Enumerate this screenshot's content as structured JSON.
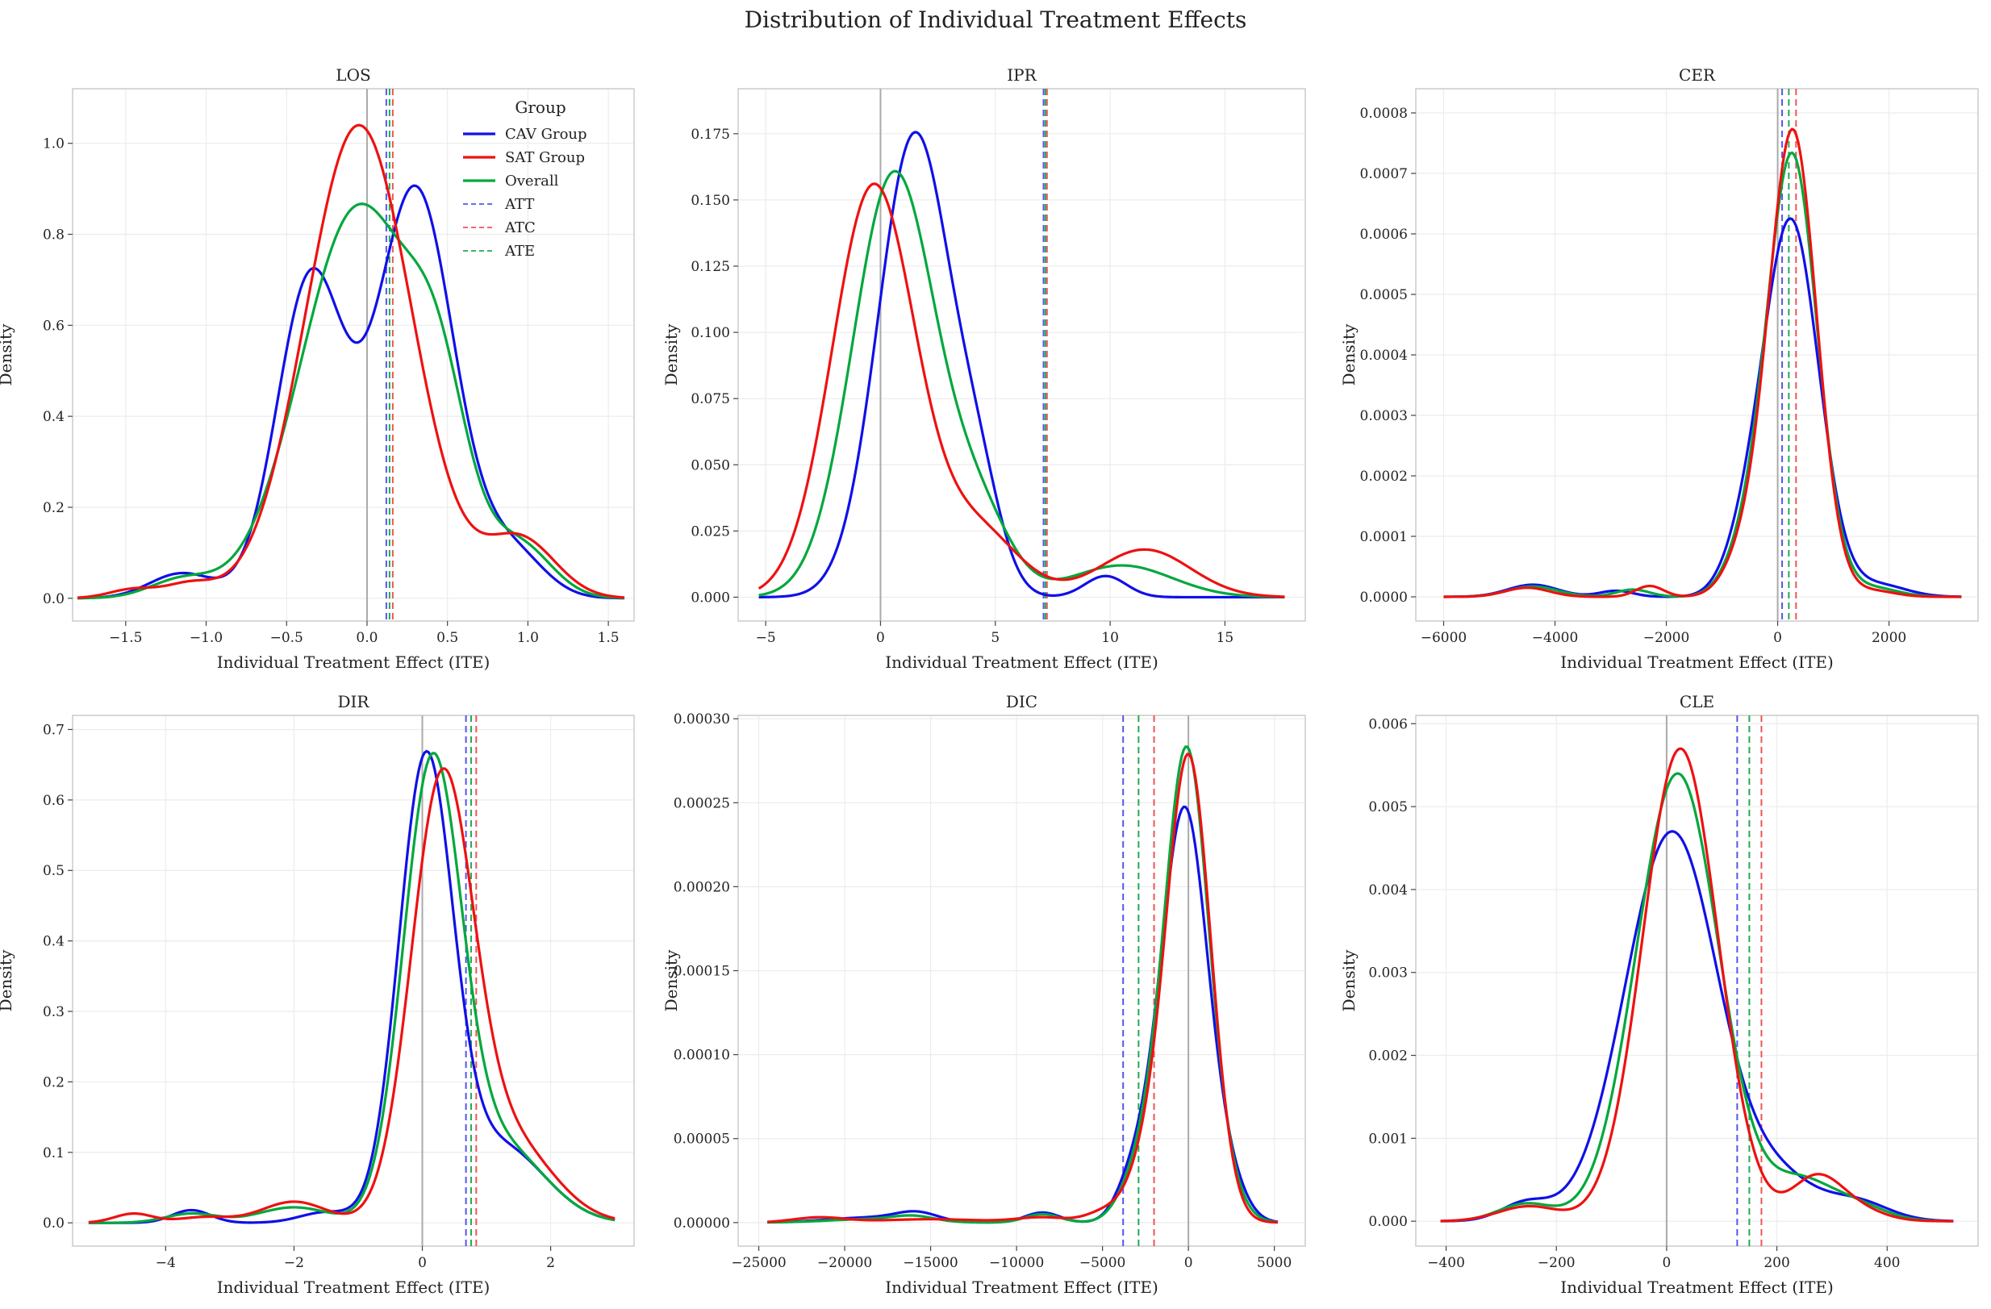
{
  "figure": {
    "title": "Distribution of Individual Treatment Effects"
  },
  "legend": {
    "title": "Group",
    "entries": [
      {
        "label": "CAV Group",
        "color": "#1010e8",
        "style": "solid"
      },
      {
        "label": "SAT Group",
        "color": "#ee1111",
        "style": "solid"
      },
      {
        "label": "Overall",
        "color": "#00a83c",
        "style": "solid"
      },
      {
        "label": "ATT",
        "color": "#5555ee",
        "style": "dashed"
      },
      {
        "label": "ATC",
        "color": "#ee5555",
        "style": "dashed"
      },
      {
        "label": "ATE",
        "color": "#22aa55",
        "style": "dashed"
      }
    ]
  },
  "colors": {
    "cav": "#1010e8",
    "sat": "#ee1111",
    "overall": "#00a83c",
    "att": "#5555ee",
    "atc": "#ee5555",
    "ate": "#22aa55",
    "zero": "#aaaaaa"
  },
  "chart_data": [
    {
      "type": "line",
      "title": "LOS",
      "xlabel": "Individual Treatment Effect (ITE)",
      "ylabel": "Density",
      "xlim": [
        -1.83,
        1.66
      ],
      "ylim": [
        -0.05,
        1.12
      ],
      "xticks": [
        -1.5,
        -1.0,
        -0.5,
        0.0,
        0.5,
        1.0,
        1.5
      ],
      "xtick_labels": [
        "−1.5",
        "−1.0",
        "−0.5",
        "0.0",
        "0.5",
        "1.0",
        "1.5"
      ],
      "yticks": [
        0.0,
        0.2,
        0.4,
        0.6,
        0.8,
        1.0
      ],
      "ytick_labels": [
        "0.0",
        "0.2",
        "0.4",
        "0.6",
        "0.8",
        "1.0"
      ],
      "x_min": -1.8,
      "x_max": 1.6,
      "ate_lines": {
        "ATT": 0.12,
        "ATC": 0.16,
        "ATE": 0.14
      },
      "show_legend": true,
      "series": [
        {
          "name": "CAV Group",
          "peaks": [
            [
              -1.15,
              0.055,
              0.2
            ],
            [
              -0.35,
              0.7,
              0.21
            ],
            [
              0.3,
              0.9,
              0.24
            ],
            [
              0.9,
              0.1,
              0.2
            ]
          ]
        },
        {
          "name": "SAT Group",
          "peaks": [
            [
              -1.45,
              0.02,
              0.15
            ],
            [
              -1.1,
              0.03,
              0.15
            ],
            [
              -0.05,
              1.04,
              0.33
            ],
            [
              0.95,
              0.13,
              0.22
            ]
          ]
        },
        {
          "name": "Overall",
          "peaks": [
            [
              -1.15,
              0.04,
              0.2
            ],
            [
              -0.05,
              0.86,
              0.36
            ],
            [
              0.45,
              0.29,
              0.18
            ],
            [
              0.95,
              0.11,
              0.2
            ]
          ]
        }
      ]
    },
    {
      "type": "line",
      "title": "IPR",
      "xlabel": "Individual Treatment Effect (ITE)",
      "ylabel": "Density",
      "xlim": [
        -6.2,
        18.5
      ],
      "ylim": [
        -0.009,
        0.192
      ],
      "xticks": [
        -5,
        0,
        5,
        10,
        15
      ],
      "xtick_labels": [
        "−5",
        "0",
        "5",
        "10",
        "15"
      ],
      "yticks": [
        0.0,
        0.025,
        0.05,
        0.075,
        0.1,
        0.125,
        0.15,
        0.175
      ],
      "ytick_labels": [
        "0.000",
        "0.025",
        "0.050",
        "0.075",
        "0.100",
        "0.125",
        "0.150",
        "0.175"
      ],
      "x_min": -5.3,
      "x_max": 17.6,
      "ate_lines": {
        "ATT": 7.1,
        "ATC": 7.25,
        "ATE": 7.18
      },
      "show_legend": false,
      "series": [
        {
          "name": "CAV Group",
          "peaks": [
            [
              1.5,
              0.175,
              1.6
            ],
            [
              4.3,
              0.03,
              1.0
            ],
            [
              9.8,
              0.008,
              0.9
            ]
          ]
        },
        {
          "name": "SAT Group",
          "peaks": [
            [
              -0.3,
              0.155,
              1.8
            ],
            [
              4.2,
              0.025,
              1.8
            ],
            [
              11.5,
              0.018,
              2.0
            ]
          ]
        },
        {
          "name": "Overall",
          "peaks": [
            [
              0.6,
              0.16,
              1.8
            ],
            [
              4.3,
              0.028,
              1.4
            ],
            [
              10.5,
              0.012,
              2.2
            ]
          ]
        }
      ]
    },
    {
      "type": "line",
      "title": "CER",
      "xlabel": "Individual Treatment Effect (ITE)",
      "ylabel": "Density",
      "xlim": [
        -6500,
        3600
      ],
      "ylim": [
        -4e-05,
        0.00084
      ],
      "xticks": [
        -6000,
        -4000,
        -2000,
        0,
        2000
      ],
      "xtick_labels": [
        "−6000",
        "−4000",
        "−2000",
        "0",
        "2000"
      ],
      "yticks": [
        0.0,
        0.0001,
        0.0002,
        0.0003,
        0.0004,
        0.0005,
        0.0006,
        0.0007,
        0.0008
      ],
      "ytick_labels": [
        "0.0000",
        "0.0001",
        "0.0002",
        "0.0003",
        "0.0004",
        "0.0005",
        "0.0006",
        "0.0007",
        "0.0008"
      ],
      "x_min": -6000,
      "x_max": 3300,
      "ate_lines": {
        "ATT": 80,
        "ATC": 330,
        "ATE": 200
      },
      "show_legend": false,
      "series": [
        {
          "name": "CAV Group",
          "peaks": [
            [
              -4400,
              2e-05,
              450
            ],
            [
              -2900,
              1e-05,
              300
            ],
            [
              -600,
              6e-05,
              380
            ],
            [
              240,
              0.00062,
              500
            ],
            [
              1800,
              2e-05,
              500
            ]
          ]
        },
        {
          "name": "SAT Group",
          "peaks": [
            [
              -4500,
              1.5e-05,
              400
            ],
            [
              -2300,
              1.8e-05,
              250
            ],
            [
              -600,
              6e-05,
              360
            ],
            [
              270,
              0.00077,
              430
            ],
            [
              1700,
              1e-05,
              400
            ]
          ]
        },
        {
          "name": "Overall",
          "peaks": [
            [
              -4400,
              1.7e-05,
              450
            ],
            [
              -2600,
              1.2e-05,
              300
            ],
            [
              -600,
              6e-05,
              370
            ],
            [
              260,
              0.00073,
              450
            ],
            [
              1700,
              1.5e-05,
              450
            ]
          ]
        }
      ]
    },
    {
      "type": "line",
      "title": "DIR",
      "xlabel": "Individual Treatment Effect (ITE)",
      "ylabel": "Density",
      "xlim": [
        -5.45,
        3.3
      ],
      "ylim": [
        -0.033,
        0.72
      ],
      "xticks": [
        -4,
        -2,
        0,
        2
      ],
      "xtick_labels": [
        "−4",
        "−2",
        "0",
        "2"
      ],
      "yticks": [
        0.0,
        0.1,
        0.2,
        0.3,
        0.4,
        0.5,
        0.6,
        0.7
      ],
      "ytick_labels": [
        "0.0",
        "0.1",
        "0.2",
        "0.3",
        "0.4",
        "0.5",
        "0.6",
        "0.7"
      ],
      "x_min": -5.2,
      "x_max": 3.0,
      "ate_lines": {
        "ATT": 0.68,
        "ATC": 0.84,
        "ATE": 0.76
      },
      "show_legend": false,
      "series": [
        {
          "name": "CAV Group",
          "peaks": [
            [
              -3.6,
              0.018,
              0.3
            ],
            [
              -1.5,
              0.015,
              0.4
            ],
            [
              0.05,
              0.64,
              0.42
            ],
            [
              1.2,
              0.11,
              0.7
            ]
          ]
        },
        {
          "name": "SAT Group",
          "peaks": [
            [
              -4.5,
              0.013,
              0.3
            ],
            [
              -3.4,
              0.008,
              0.4
            ],
            [
              -2.0,
              0.03,
              0.5
            ],
            [
              0.3,
              0.6,
              0.48
            ],
            [
              1.3,
              0.12,
              0.7
            ]
          ]
        },
        {
          "name": "Overall",
          "peaks": [
            [
              -3.6,
              0.013,
              0.4
            ],
            [
              -2.0,
              0.022,
              0.55
            ],
            [
              0.15,
              0.63,
              0.45
            ],
            [
              1.2,
              0.11,
              0.7
            ]
          ]
        }
      ]
    },
    {
      "type": "line",
      "title": "DIC",
      "xlabel": "Individual Treatment Effect (ITE)",
      "ylabel": "Density",
      "xlim": [
        -26200,
        6800
      ],
      "ylim": [
        -1.4e-05,
        0.000302
      ],
      "xticks": [
        -25000,
        -20000,
        -15000,
        -10000,
        -5000,
        0,
        5000
      ],
      "xtick_labels": [
        "−25000",
        "−20000",
        "−15000",
        "−10000",
        "−5000",
        "0",
        "5000"
      ],
      "yticks": [
        0.0,
        5e-05,
        0.0001,
        0.00015,
        0.0002,
        0.00025,
        0.0003
      ],
      "ytick_labels": [
        "0.00000",
        "0.00005",
        "0.00010",
        "0.00015",
        "0.00020",
        "0.00025",
        "0.00030"
      ],
      "x_min": -24500,
      "x_max": 5200,
      "ate_lines": {
        "ATT": -3800,
        "ATC": -2000,
        "ATE": -2900
      },
      "show_legend": false,
      "series": [
        {
          "name": "CAV Group",
          "peaks": [
            [
              -18500,
              3e-06,
              2500
            ],
            [
              -15800,
              5e-06,
              1200
            ],
            [
              -8500,
              6e-06,
              1000
            ],
            [
              -3500,
              1.2e-05,
              900
            ],
            [
              -2500,
              2e-05,
              1100
            ],
            [
              -200,
              0.000245,
              1350
            ],
            [
              2500,
              1.5e-05,
              1000
            ]
          ]
        },
        {
          "name": "SAT Group",
          "peaks": [
            [
              -21500,
              3e-06,
              1500
            ],
            [
              -15000,
              2e-06,
              3000
            ],
            [
              -8500,
              3e-06,
              1500
            ],
            [
              -4500,
              8e-06,
              1200
            ],
            [
              -2500,
              2.5e-05,
              1000
            ],
            [
              0,
              0.000278,
              1300
            ]
          ]
        },
        {
          "name": "Overall",
          "peaks": [
            [
              -18500,
              2e-06,
              2500
            ],
            [
              -16000,
              3e-06,
              1200
            ],
            [
              -8500,
              5e-06,
              1000
            ],
            [
              -3500,
              1e-05,
              1000
            ],
            [
              -2500,
              2.2e-05,
              1000
            ],
            [
              -100,
              0.000282,
              1300
            ],
            [
              2500,
              8e-06,
              1000
            ]
          ]
        }
      ]
    },
    {
      "type": "line",
      "title": "CLE",
      "xlabel": "Individual Treatment Effect (ITE)",
      "ylabel": "Density",
      "xlim": [
        -455,
        565
      ],
      "ylim": [
        -0.0003,
        0.0061
      ],
      "xticks": [
        -400,
        -200,
        0,
        200,
        400
      ],
      "xtick_labels": [
        "−400",
        "−200",
        "0",
        "200",
        "400"
      ],
      "yticks": [
        0.0,
        0.001,
        0.002,
        0.003,
        0.004,
        0.005,
        0.006
      ],
      "ytick_labels": [
        "0.000",
        "0.001",
        "0.002",
        "0.003",
        "0.004",
        "0.005",
        "0.006"
      ],
      "x_min": -410,
      "x_max": 520,
      "ate_lines": {
        "ATT": 128,
        "ATC": 172,
        "ATE": 150
      },
      "show_legend": false,
      "series": [
        {
          "name": "CAV Group",
          "peaks": [
            [
              -255,
              0.00022,
              45
            ],
            [
              10,
              0.0047,
              85
            ],
            [
              210,
              0.00042,
              60
            ],
            [
              340,
              0.00025,
              60
            ]
          ]
        },
        {
          "name": "SAT Group",
          "peaks": [
            [
              -250,
              0.00018,
              55
            ],
            [
              25,
              0.0057,
              68
            ],
            [
              270,
              0.0005,
              45
            ],
            [
              340,
              0.00015,
              50
            ]
          ]
        },
        {
          "name": "Overall",
          "peaks": [
            [
              -255,
              0.00021,
              50
            ],
            [
              20,
              0.0054,
              75
            ],
            [
              240,
              0.00045,
              55
            ],
            [
              340,
              0.0002,
              55
            ]
          ]
        }
      ]
    }
  ]
}
